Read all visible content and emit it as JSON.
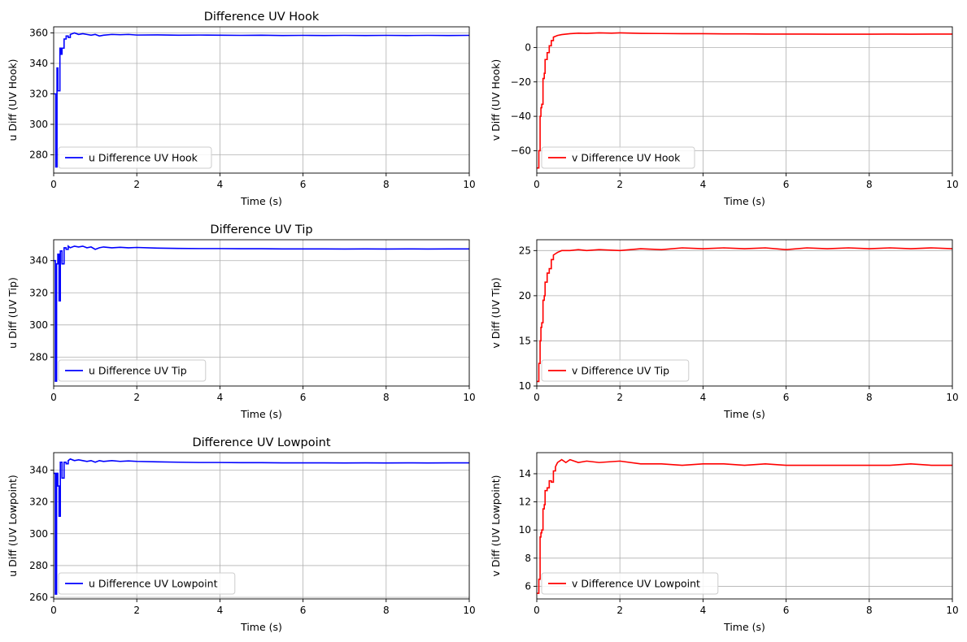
{
  "chart_data": [
    {
      "type": "line",
      "title": "Difference UV Hook",
      "xlabel": "Time (s)",
      "ylabel": "u Diff (UV Hook)",
      "xlim": [
        0,
        10
      ],
      "ylim": [
        268,
        364
      ],
      "xticks": [
        0,
        2,
        4,
        6,
        8,
        10
      ],
      "yticks": [
        280,
        300,
        320,
        340,
        360
      ],
      "grid": true,
      "legend_position": "lower-left",
      "series": [
        {
          "name": "u Difference UV Hook",
          "color": "#0000ff",
          "x": [
            0,
            0.05,
            0.05,
            0.08,
            0.08,
            0.1,
            0.1,
            0.15,
            0.15,
            0.18,
            0.18,
            0.2,
            0.2,
            0.25,
            0.25,
            0.3,
            0.3,
            0.35,
            0.35,
            0.4,
            0.4,
            0.5,
            0.6,
            0.7,
            0.8,
            0.9,
            1.0,
            1.1,
            1.2,
            1.4,
            1.6,
            1.8,
            2.0,
            2.5,
            3.0,
            3.5,
            4.0,
            4.5,
            5.0,
            5.5,
            6.0,
            6.5,
            7.0,
            7.5,
            8.0,
            8.5,
            9.0,
            9.5,
            10.0
          ],
          "y": [
            320,
            320,
            272,
            272,
            337,
            337,
            322,
            322,
            350,
            350,
            346,
            346,
            350,
            350,
            356,
            356,
            358,
            358,
            357,
            357,
            359,
            360,
            359,
            359.5,
            359,
            358.5,
            359,
            358,
            358.5,
            359,
            358.8,
            359,
            358.6,
            358.7,
            358.5,
            358.6,
            358.5,
            358.4,
            358.5,
            358.3,
            358.4,
            358.3,
            358.4,
            358.3,
            358.4,
            358.3,
            358.4,
            358.3,
            358.4
          ]
        }
      ]
    },
    {
      "type": "line",
      "title": "",
      "xlabel": "Time (s)",
      "ylabel": "v Diff (UV Hook)",
      "xlim": [
        0,
        10
      ],
      "ylim": [
        -73,
        12
      ],
      "xticks": [
        0,
        2,
        4,
        6,
        8,
        10
      ],
      "yticks": [
        -60,
        -40,
        -20,
        0
      ],
      "grid": true,
      "legend_position": "lower-left",
      "series": [
        {
          "name": "v Difference UV Hook",
          "color": "#ff0000",
          "x": [
            0,
            0.05,
            0.05,
            0.08,
            0.08,
            0.1,
            0.1,
            0.12,
            0.12,
            0.15,
            0.15,
            0.18,
            0.18,
            0.2,
            0.2,
            0.25,
            0.25,
            0.3,
            0.3,
            0.35,
            0.35,
            0.4,
            0.4,
            0.5,
            0.6,
            0.8,
            1.0,
            1.2,
            1.5,
            1.8,
            2.0,
            2.5,
            3.0,
            3.5,
            4.0,
            4.5,
            5.0,
            5.5,
            6.0,
            6.5,
            7.0,
            7.5,
            8.0,
            8.5,
            9.0,
            9.5,
            10.0
          ],
          "y": [
            -70,
            -70,
            -60,
            -60,
            -40,
            -40,
            -35,
            -35,
            -33,
            -33,
            -18,
            -18,
            -15,
            -15,
            -7,
            -7,
            -3,
            -3,
            1,
            1,
            4,
            4,
            6,
            7,
            7.5,
            8,
            8.3,
            8.2,
            8.5,
            8.3,
            8.5,
            8.2,
            8.1,
            8.0,
            8.0,
            7.9,
            7.9,
            7.8,
            7.8,
            7.8,
            7.7,
            7.7,
            7.7,
            7.8,
            7.7,
            7.8,
            7.8
          ]
        }
      ]
    },
    {
      "type": "line",
      "title": "Difference UV Tip",
      "xlabel": "Time (s)",
      "ylabel": "u Diff (UV Tip)",
      "xlim": [
        0,
        10
      ],
      "ylim": [
        262,
        353
      ],
      "xticks": [
        0,
        2,
        4,
        6,
        8,
        10
      ],
      "yticks": [
        280,
        300,
        320,
        340
      ],
      "grid": true,
      "legend_position": "lower-left",
      "series": [
        {
          "name": "u Difference UV Tip",
          "color": "#0000ff",
          "x": [
            0,
            0.04,
            0.04,
            0.07,
            0.07,
            0.1,
            0.1,
            0.13,
            0.13,
            0.16,
            0.16,
            0.2,
            0.2,
            0.25,
            0.25,
            0.3,
            0.3,
            0.35,
            0.35,
            0.4,
            0.5,
            0.6,
            0.7,
            0.8,
            0.9,
            1.0,
            1.1,
            1.2,
            1.4,
            1.6,
            1.8,
            2.0,
            2.5,
            3.0,
            3.5,
            4.0,
            4.5,
            5.0,
            5.5,
            6.0,
            6.5,
            7.0,
            7.5,
            8.0,
            8.5,
            9.0,
            9.5,
            10.0
          ],
          "y": [
            340,
            340,
            265,
            265,
            338,
            338,
            344,
            344,
            315,
            315,
            346,
            346,
            338,
            338,
            348,
            348,
            347,
            347,
            349,
            348,
            349,
            348.5,
            349,
            348,
            348.5,
            347,
            348,
            348.5,
            348,
            348.3,
            348,
            348.2,
            347.8,
            347.6,
            347.5,
            347.5,
            347.4,
            347.4,
            347.3,
            347.3,
            347.3,
            347.2,
            347.3,
            347.2,
            347.3,
            347.2,
            347.3,
            347.3
          ]
        }
      ]
    },
    {
      "type": "line",
      "title": "",
      "xlabel": "Time (s)",
      "ylabel": "v Diff (UV Tip)",
      "xlim": [
        0,
        10
      ],
      "ylim": [
        10,
        26.2
      ],
      "xticks": [
        0,
        2,
        4,
        6,
        8,
        10
      ],
      "yticks": [
        10,
        15,
        20,
        25
      ],
      "grid": true,
      "legend_position": "lower-left",
      "series": [
        {
          "name": "v Difference UV Tip",
          "color": "#ff0000",
          "x": [
            0,
            0.05,
            0.05,
            0.08,
            0.08,
            0.1,
            0.1,
            0.12,
            0.12,
            0.15,
            0.15,
            0.18,
            0.18,
            0.2,
            0.2,
            0.25,
            0.25,
            0.3,
            0.3,
            0.35,
            0.35,
            0.4,
            0.4,
            0.5,
            0.6,
            0.8,
            1.0,
            1.2,
            1.5,
            2.0,
            2.5,
            3.0,
            3.5,
            4.0,
            4.5,
            5.0,
            5.5,
            6.0,
            6.5,
            7.0,
            7.5,
            8.0,
            8.5,
            9.0,
            9.5,
            10.0
          ],
          "y": [
            10.5,
            10.5,
            12.5,
            12.5,
            15,
            15,
            16.5,
            16.5,
            17,
            17,
            19.5,
            19.5,
            20,
            20,
            21.5,
            21.5,
            22.5,
            22.5,
            23,
            23,
            24,
            24,
            24.5,
            24.8,
            25,
            25,
            25.1,
            25,
            25.1,
            25,
            25.2,
            25.1,
            25.3,
            25.2,
            25.3,
            25.2,
            25.3,
            25.1,
            25.3,
            25.2,
            25.3,
            25.2,
            25.3,
            25.2,
            25.3,
            25.2
          ]
        }
      ]
    },
    {
      "type": "line",
      "title": "Difference UV Lowpoint",
      "xlabel": "Time (s)",
      "ylabel": "u Diff (UV Lowpoint)",
      "xlim": [
        0,
        10
      ],
      "ylim": [
        259,
        351
      ],
      "xticks": [
        0,
        2,
        4,
        6,
        8,
        10
      ],
      "yticks": [
        260,
        280,
        300,
        320,
        340
      ],
      "grid": true,
      "legend_position": "lower-left",
      "series": [
        {
          "name": "u Difference UV Lowpoint",
          "color": "#0000ff",
          "x": [
            0,
            0.04,
            0.04,
            0.07,
            0.07,
            0.1,
            0.1,
            0.13,
            0.13,
            0.16,
            0.16,
            0.2,
            0.2,
            0.25,
            0.25,
            0.3,
            0.3,
            0.35,
            0.35,
            0.4,
            0.5,
            0.6,
            0.7,
            0.8,
            0.9,
            1.0,
            1.1,
            1.2,
            1.4,
            1.6,
            1.8,
            2.0,
            2.5,
            3.0,
            3.5,
            4.0,
            4.5,
            5.0,
            5.5,
            6.0,
            6.5,
            7.0,
            7.5,
            8.0,
            8.5,
            9.0,
            9.5,
            10.0
          ],
          "y": [
            338,
            338,
            262,
            262,
            338,
            338,
            330,
            330,
            311,
            311,
            345,
            345,
            335,
            335,
            345,
            345,
            344,
            344,
            346,
            347,
            346,
            346.5,
            346,
            345.5,
            346,
            345,
            346,
            345.5,
            346,
            345.5,
            345.8,
            345.5,
            345.2,
            345,
            344.8,
            344.8,
            344.7,
            344.7,
            344.6,
            344.6,
            344.6,
            344.5,
            344.6,
            344.5,
            344.6,
            344.5,
            344.6,
            344.6
          ]
        }
      ]
    },
    {
      "type": "line",
      "title": "",
      "xlabel": "Time (s)",
      "ylabel": "v Diff (UV Lowpoint)",
      "xlim": [
        0,
        10
      ],
      "ylim": [
        5.1,
        15.5
      ],
      "xticks": [
        0,
        2,
        4,
        6,
        8,
        10
      ],
      "yticks": [
        6,
        8,
        10,
        12,
        14
      ],
      "grid": true,
      "legend_position": "lower-left",
      "series": [
        {
          "name": "v Difference UV Lowpoint",
          "color": "#ff0000",
          "x": [
            0,
            0.05,
            0.05,
            0.08,
            0.08,
            0.1,
            0.1,
            0.12,
            0.12,
            0.15,
            0.15,
            0.18,
            0.18,
            0.2,
            0.2,
            0.25,
            0.25,
            0.3,
            0.3,
            0.35,
            0.35,
            0.4,
            0.4,
            0.45,
            0.45,
            0.5,
            0.6,
            0.7,
            0.8,
            0.9,
            1.0,
            1.2,
            1.5,
            2.0,
            2.5,
            3.0,
            3.5,
            4.0,
            4.5,
            5.0,
            5.5,
            6.0,
            6.5,
            7.0,
            7.5,
            8.0,
            8.5,
            9.0,
            9.5,
            10.0
          ],
          "y": [
            5.5,
            5.5,
            6.5,
            6.5,
            9.5,
            9.5,
            9.8,
            9.8,
            10,
            10,
            11.5,
            11.5,
            11.8,
            11.8,
            12.8,
            12.8,
            13,
            13,
            13.5,
            13.5,
            13.4,
            13.4,
            14.2,
            14.2,
            14.5,
            14.8,
            15,
            14.8,
            15,
            14.9,
            14.8,
            14.9,
            14.8,
            14.9,
            14.7,
            14.7,
            14.6,
            14.7,
            14.7,
            14.6,
            14.7,
            14.6,
            14.6,
            14.6,
            14.6,
            14.6,
            14.6,
            14.7,
            14.6,
            14.6
          ]
        }
      ]
    }
  ]
}
